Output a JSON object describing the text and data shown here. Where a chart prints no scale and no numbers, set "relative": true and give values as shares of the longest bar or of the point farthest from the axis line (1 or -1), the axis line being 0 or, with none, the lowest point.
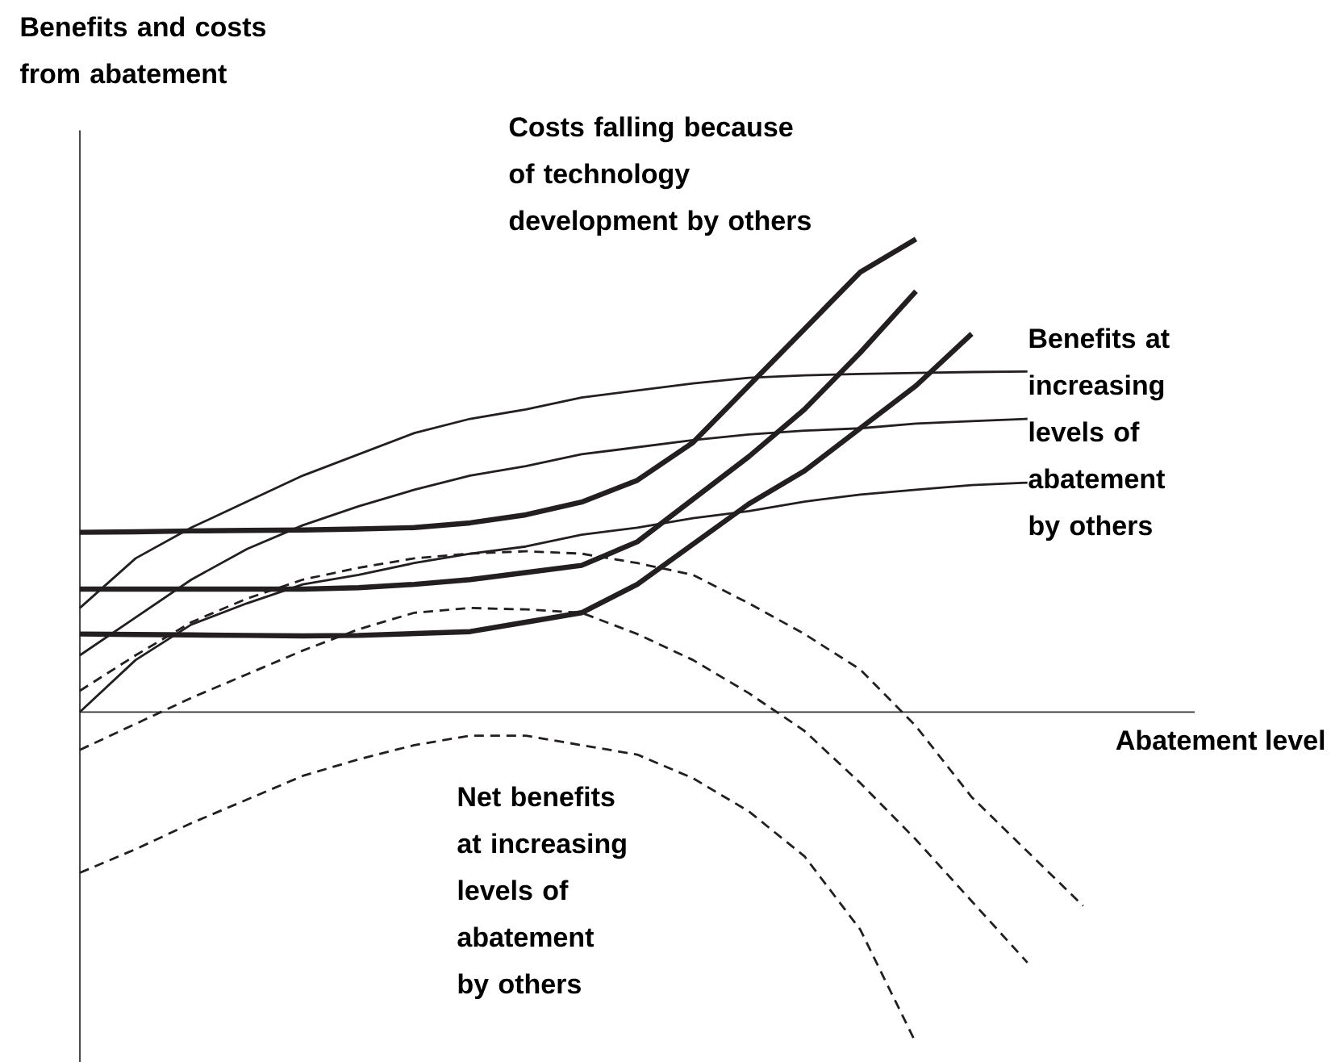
{
  "chart_data": {
    "type": "line",
    "relative": true,
    "xlabel": "Abatement level",
    "marker": "none",
    "line_style": "solid",
    "annotations": [
      "Benefits and costs from abatement",
      "Costs falling because of technology development by others",
      "Benefits at increasing levels of abatement by others",
      "Net benefits at increasing levels of abatement by others"
    ],
    "categories": [
      null,
      null,
      null,
      null,
      null,
      null,
      null,
      null,
      null,
      null,
      null,
      null,
      null,
      null,
      null,
      null,
      null,
      null,
      null,
      null,
      null
    ],
    "series": [
      {
        "color": "#231f20",
        "values": [
          0.38,
          0.381,
          0.383,
          0.384,
          0.385,
          0.387,
          0.39,
          0.4,
          0.417,
          0.444,
          0.49,
          0.57,
          0.69,
          0.81,
          0.93,
          1.0,
          null,
          null,
          null,
          null,
          null
        ]
      },
      {
        "color": "#231f20",
        "values": [
          0.26,
          0.26,
          0.26,
          0.26,
          0.26,
          0.263,
          0.27,
          0.28,
          0.295,
          0.31,
          0.36,
          0.45,
          0.54,
          0.64,
          0.76,
          0.89,
          null,
          null,
          null,
          null,
          null
        ]
      },
      {
        "color": "#231f20",
        "values": [
          0.165,
          0.164,
          0.163,
          0.162,
          0.161,
          0.162,
          0.166,
          0.17,
          0.19,
          0.21,
          0.27,
          0.355,
          0.44,
          0.51,
          0.6,
          0.69,
          0.8,
          null,
          null,
          null,
          null
        ]
      },
      {
        "color": "#231f20",
        "values": [
          0.22,
          0.325,
          0.39,
          0.445,
          0.5,
          0.545,
          0.59,
          0.62,
          0.64,
          0.665,
          0.68,
          0.695,
          0.707,
          0.712,
          0.715,
          0.717,
          0.719,
          0.72,
          null,
          null,
          null
        ]
      },
      {
        "color": "#231f20",
        "values": [
          0.12,
          0.2,
          0.28,
          0.345,
          0.395,
          0.435,
          0.47,
          0.5,
          0.52,
          0.545,
          0.56,
          0.575,
          0.587,
          0.595,
          0.6,
          0.61,
          0.615,
          0.62,
          null,
          null,
          null
        ]
      },
      {
        "color": "#231f20",
        "values": [
          0,
          0.11,
          0.185,
          0.23,
          0.27,
          0.29,
          0.315,
          0.335,
          0.35,
          0.375,
          0.39,
          0.41,
          0.425,
          0.445,
          0.46,
          0.47,
          0.48,
          0.485,
          null,
          null,
          null
        ]
      },
      {
        "color": "#231f20",
        "line_style": "dashed",
        "values": [
          0.045,
          0.12,
          0.19,
          0.24,
          0.28,
          0.305,
          0.325,
          0.335,
          0.34,
          0.335,
          0.315,
          0.29,
          0.23,
          0.165,
          0.09,
          -0.03,
          -0.18,
          -0.295,
          -0.41,
          null,
          null
        ]
      },
      {
        "color": "#231f20",
        "line_style": "dashed",
        "values": [
          -0.08,
          -0.025,
          0.03,
          0.08,
          0.13,
          0.175,
          0.21,
          0.22,
          0.217,
          0.21,
          0.165,
          0.11,
          0.04,
          -0.04,
          -0.15,
          -0.27,
          -0.4,
          -0.53,
          null,
          null,
          null
        ]
      },
      {
        "color": "#231f20",
        "line_style": "dashed",
        "values": [
          -0.34,
          -0.29,
          -0.235,
          -0.185,
          -0.135,
          -0.1,
          -0.07,
          -0.05,
          -0.05,
          -0.07,
          -0.09,
          -0.14,
          -0.21,
          -0.305,
          -0.46,
          -0.7,
          null,
          null,
          null,
          null,
          null
        ]
      }
    ]
  }
}
